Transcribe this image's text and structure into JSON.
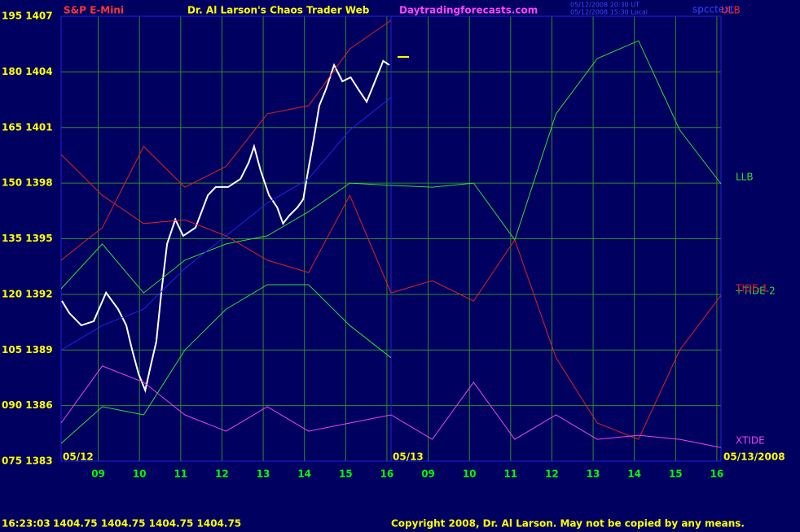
{
  "chart_data": {
    "type": "line",
    "symbol": "S&P E-Mini",
    "title": "Dr. Al Larson's Chaos Trader Web",
    "website": "Daytradingforecasts.com",
    "timestamp_ut": "05/12/2008 20:30 UT",
    "timestamp_local": "05/12/2008 15:30 Local",
    "chart_file": "spcctext",
    "annotations": {
      "ulb": "ULB",
      "tide2": "+TIDE-2"
    },
    "start_date": "05/12",
    "mid_date": "05/13",
    "end_date": "05/13/2008",
    "footer_time": "16:23:03",
    "footer_prices": "1404.75 1404.75 1404.75 1404.75",
    "copyright": "Copyright 2008, Dr. Al Larson. May not be copied by any means.",
    "background": "#000060",
    "grid": true,
    "grid_color": "#2e8b2e",
    "xlim": [
      8.1,
      24.1
    ],
    "xticks": [
      {
        "value": 9,
        "label": "09"
      },
      10,
      11,
      12,
      13,
      14,
      15,
      16,
      {
        "value": 17,
        "label": "09"
      },
      {
        "value": 18,
        "label": "10"
      },
      {
        "value": 19,
        "label": "11"
      },
      {
        "value": 20,
        "label": "12"
      },
      {
        "value": 21,
        "label": "13"
      },
      {
        "value": 22,
        "label": "14"
      },
      {
        "value": 23,
        "label": "15"
      },
      {
        "value": 24,
        "label": "16"
      }
    ],
    "ylim": [
      75,
      195
    ],
    "yticks": [
      {
        "value": 195,
        "label": "195 1407"
      },
      {
        "value": 180,
        "label": "180 1404"
      },
      {
        "value": 165,
        "label": "165 1401"
      },
      {
        "value": 150,
        "label": "150 1398"
      },
      {
        "value": 135,
        "label": "135 1395"
      },
      {
        "value": 120,
        "label": "120 1392"
      },
      {
        "value": 105,
        "label": "105 1389"
      },
      {
        "value": 90,
        "label": "090 1386"
      },
      {
        "value": 75,
        "label": "075 1383"
      }
    ],
    "y2lim": [
      1383,
      1407
    ],
    "x": [
      8.1,
      9.1,
      10.1,
      11.1,
      12.1,
      13.1,
      14.1,
      15.1,
      16.1,
      17.1,
      18.1,
      19.1,
      20.1,
      21.1,
      22.1,
      23.1,
      24.1
    ],
    "series": [
      {
        "color": "#ffffff",
        "axis": "y2",
        "x": [
          8.12,
          8.3,
          8.59,
          8.89,
          9.19,
          9.48,
          9.68,
          9.82,
          9.98,
          10.14,
          10.27,
          10.41,
          10.53,
          10.67,
          10.87,
          11.06,
          11.36,
          11.66,
          11.85,
          12.15,
          12.45,
          12.65,
          12.78,
          12.94,
          13.14,
          13.34,
          13.48,
          13.63,
          13.83,
          13.97,
          14.09,
          14.23,
          14.36,
          14.52,
          14.72,
          14.92,
          15.12,
          15.31,
          15.51,
          15.71,
          15.91,
          16.06
        ],
        "values": [
          1391.65,
          1390.99,
          1390.33,
          1390.55,
          1392.09,
          1391.21,
          1390.33,
          1389.02,
          1387.7,
          1386.82,
          1388.14,
          1389.46,
          1392.09,
          1394.72,
          1396.04,
          1395.16,
          1395.6,
          1397.35,
          1397.79,
          1397.79,
          1398.23,
          1399.11,
          1399.98,
          1398.67,
          1397.35,
          1396.69,
          1395.82,
          1396.25,
          1396.69,
          1397.13,
          1398.67,
          1400.42,
          1402.18,
          1403.05,
          1404.37,
          1403.49,
          1403.71,
          1403.05,
          1402.39,
          1403.49,
          1404.59,
          1404.37
        ]
      },
      {
        "name": "LLB",
        "color": "#33dd33",
        "values": [
          121.5,
          133.6,
          120.4,
          129.2,
          133.6,
          135.8,
          142.3,
          150.0,
          149.4,
          148.9,
          150.0,
          134.7,
          168.7,
          183.6,
          188.4,
          164.3,
          149.8
        ]
      },
      {
        "name": "TIDE-1",
        "color": "#dd2222",
        "values": [
          157.7,
          146.7,
          139.1,
          140.1,
          135.8,
          129.2,
          125.9,
          146.7,
          120.4,
          123.7,
          118.2,
          134.7,
          102.9,
          85.3,
          80.9,
          105.0,
          119.7
        ]
      },
      {
        "name": "XTIDE",
        "color": "#ee44ee",
        "values": [
          85.3,
          100.7,
          96.3,
          87.5,
          83.1,
          89.7,
          83.1,
          85.3,
          87.5,
          80.9,
          96.3,
          80.9,
          87.5,
          80.9,
          82.0,
          80.9,
          78.7
        ]
      },
      {
        "color": "#33dd33",
        "values": [
          79.8,
          89.7,
          87.5,
          105.0,
          116.0,
          122.6,
          122.6,
          111.6,
          102.9,
          null,
          null,
          null,
          null,
          null,
          null,
          null,
          null
        ]
      },
      {
        "color": "#dd2222",
        "values": [
          129.2,
          138.0,
          159.9,
          148.9,
          154.5,
          168.7,
          170.9,
          186.2,
          193.9,
          null,
          null,
          null,
          null,
          null,
          null,
          null,
          null
        ]
      },
      {
        "color": "#2222ee",
        "values": [
          105.0,
          111.6,
          116.0,
          127.0,
          135.8,
          144.6,
          151.2,
          164.3,
          173.1,
          null,
          null,
          null,
          null,
          null,
          null,
          null,
          null
        ]
      }
    ]
  }
}
